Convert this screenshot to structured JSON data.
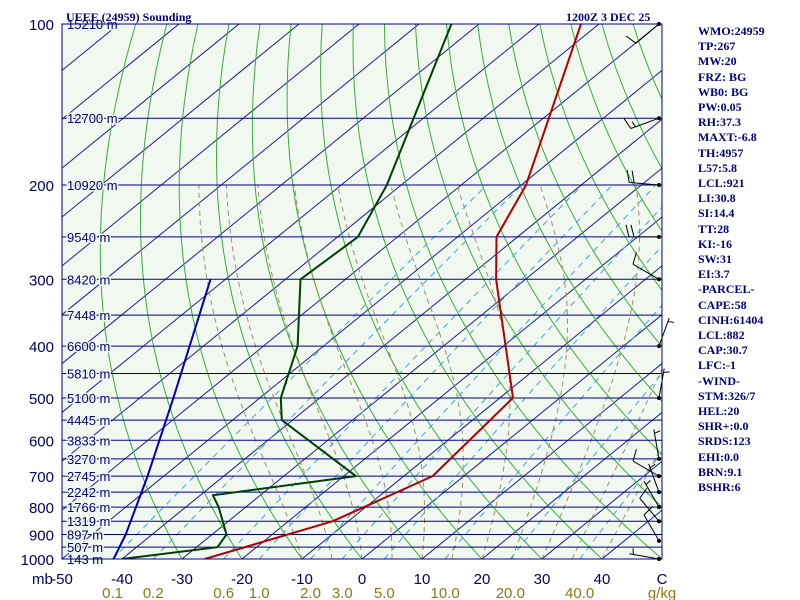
{
  "chart_data": {
    "type": "skew-t",
    "title": "UEEE (24959) Sounding",
    "valid_time": "1200Z  3 DEC 25",
    "pressure_unit_label": "mb",
    "mixing_ratio_unit_label": "g/kg",
    "pressure_range": [
      1000,
      100
    ],
    "temperature_range": [
      -50,
      50
    ],
    "pressure_ticks": [
      {
        "p": 100,
        "label": "100"
      },
      {
        "p": 200,
        "label": "200"
      },
      {
        "p": 300,
        "label": "300"
      },
      {
        "p": 400,
        "label": "400"
      },
      {
        "p": 500,
        "label": "500"
      },
      {
        "p": 600,
        "label": "600"
      },
      {
        "p": 700,
        "label": "700"
      },
      {
        "p": 800,
        "label": "800"
      },
      {
        "p": 900,
        "label": "900"
      },
      {
        "p": 1000,
        "label": "1000"
      }
    ],
    "temperature_ticks": [
      {
        "t": -50,
        "label": "-50"
      },
      {
        "t": -40,
        "label": "-40"
      },
      {
        "t": -30,
        "label": "-30"
      },
      {
        "t": -20,
        "label": "-20"
      },
      {
        "t": -10,
        "label": "-10"
      },
      {
        "t": 0,
        "label": "0"
      },
      {
        "t": 10,
        "label": "10"
      },
      {
        "t": 20,
        "label": "20"
      },
      {
        "t": 30,
        "label": "30"
      },
      {
        "t": 40,
        "label": "40"
      },
      {
        "t": 50,
        "label": "C"
      }
    ],
    "mixing_ratio_ticks": [
      {
        "w": 0.1,
        "label": "0.1"
      },
      {
        "w": 0.2,
        "label": "0.2"
      },
      {
        "w": 0.6,
        "label": "0.6"
      },
      {
        "w": 1.0,
        "label": "1.0"
      },
      {
        "w": 2.0,
        "label": "2.0"
      },
      {
        "w": 3.0,
        "label": "3.0"
      },
      {
        "w": 5.0,
        "label": "5.0"
      },
      {
        "w": 10.0,
        "label": "10.0"
      },
      {
        "w": 20.0,
        "label": "20.0"
      },
      {
        "w": 40.0,
        "label": "40.0"
      }
    ],
    "height_labels": [
      {
        "p": 100,
        "label": "15210 m"
      },
      {
        "p": 150,
        "label": "12700 m"
      },
      {
        "p": 200,
        "label": "10920 m"
      },
      {
        "p": 250,
        "label": "9540 m"
      },
      {
        "p": 300,
        "label": "8420 m"
      },
      {
        "p": 350,
        "label": "7448 m"
      },
      {
        "p": 400,
        "label": "6600 m"
      },
      {
        "p": 450,
        "label": "5810 m"
      },
      {
        "p": 500,
        "label": "5100 m"
      },
      {
        "p": 550,
        "label": "4445 m"
      },
      {
        "p": 600,
        "label": "3833 m"
      },
      {
        "p": 650,
        "label": "3270 m"
      },
      {
        "p": 700,
        "label": "2745 m"
      },
      {
        "p": 750,
        "label": "2242 m"
      },
      {
        "p": 800,
        "label": "1766 m"
      },
      {
        "p": 850,
        "label": "1319 m"
      },
      {
        "p": 900,
        "label": "897 m"
      },
      {
        "p": 950,
        "label": "507 m"
      },
      {
        "p": 1000,
        "label": "143 m"
      }
    ],
    "series": [
      {
        "name": "temperature",
        "color": "#b00000",
        "points": [
          {
            "p": 1000,
            "t": -26.2
          },
          {
            "p": 850,
            "t": -12.6
          },
          {
            "p": 700,
            "t": -5.2
          },
          {
            "p": 500,
            "t": -7.8
          },
          {
            "p": 300,
            "t": -34.9
          },
          {
            "p": 250,
            "t": -43.5
          },
          {
            "p": 200,
            "t": -49.2
          },
          {
            "p": 100,
            "t": -73.0
          }
        ]
      },
      {
        "name": "dewpoint",
        "color": "#004000",
        "points": [
          {
            "p": 1000,
            "t": -40.0
          },
          {
            "p": 950,
            "t": -26.5
          },
          {
            "p": 900,
            "t": -27.6
          },
          {
            "p": 800,
            "t": -34.5
          },
          {
            "p": 760,
            "t": -37.9
          },
          {
            "p": 700,
            "t": -18.0
          },
          {
            "p": 550,
            "t": -41.8
          },
          {
            "p": 500,
            "t": -46.5
          },
          {
            "p": 400,
            "t": -54.3
          },
          {
            "p": 300,
            "t": -67.5
          },
          {
            "p": 250,
            "t": -66.6
          },
          {
            "p": 200,
            "t": -72.4
          },
          {
            "p": 100,
            "t": -94.6
          }
        ]
      },
      {
        "name": "parcel",
        "color": "#0000b4",
        "points": [
          {
            "p": 1000,
            "t": -41.4
          },
          {
            "p": 900,
            "t": -44.4
          },
          {
            "p": 700,
            "t": -52.7
          },
          {
            "p": 500,
            "t": -64.4
          },
          {
            "p": 300,
            "t": -82.5
          }
        ]
      }
    ],
    "wind_barbs": [
      {
        "p": 1000,
        "dir": 280,
        "kt": 5
      },
      {
        "p": 925,
        "dir": 330,
        "kt": 10
      },
      {
        "p": 850,
        "dir": 320,
        "kt": 10
      },
      {
        "p": 800,
        "dir": 330,
        "kt": 5
      },
      {
        "p": 750,
        "dir": 340,
        "kt": 5
      },
      {
        "p": 700,
        "dir": 300,
        "kt": 10
      },
      {
        "p": 650,
        "dir": 350,
        "kt": 5
      },
      {
        "p": 500,
        "dir": 10,
        "kt": 5
      },
      {
        "p": 400,
        "dir": 20,
        "kt": 5
      },
      {
        "p": 300,
        "dir": 300,
        "kt": 10
      },
      {
        "p": 250,
        "dir": 270,
        "kt": 20
      },
      {
        "p": 200,
        "dir": 275,
        "kt": 20
      },
      {
        "p": 150,
        "dir": 250,
        "kt": 15
      },
      {
        "p": 100,
        "dir": 230,
        "kt": 10
      }
    ],
    "indices": [
      "WMO:24959",
      "TP:267",
      "MW:20",
      "FRZ: BG",
      "WB0: BG",
      "PW:0.05",
      "RH:37.3",
      "MAXT:-6.8",
      "TH:4957",
      "L57:5.8",
      "LCL:921",
      "LI:30.8",
      "SI:14.4",
      "TT:28",
      "KI:-16",
      "SW:31",
      "EI:3.7",
      "-PARCEL-",
      "CAPE:58",
      "CINH:61404",
      "LCL:882",
      "CAP:30.7",
      "LFC:-1",
      "-WIND-",
      "STM:326/7",
      "HEL:20",
      "SHR+:0.0",
      "SRDS:123",
      "EHI:0.0",
      "BRN:9.1",
      "BSHR:6"
    ]
  },
  "colors": {
    "background": "#ffffff",
    "plot_background": "#f0f8f0",
    "isobar": "#00008c",
    "isotherm": "#1e1e8c",
    "dry_adiabat": "#3caa3c",
    "moist_adiabat": "#a08c64",
    "mixing_ratio": "#46a0dc",
    "label_text": "#000080",
    "axis_text": "#000060",
    "mixing_label": "#8c7814"
  }
}
